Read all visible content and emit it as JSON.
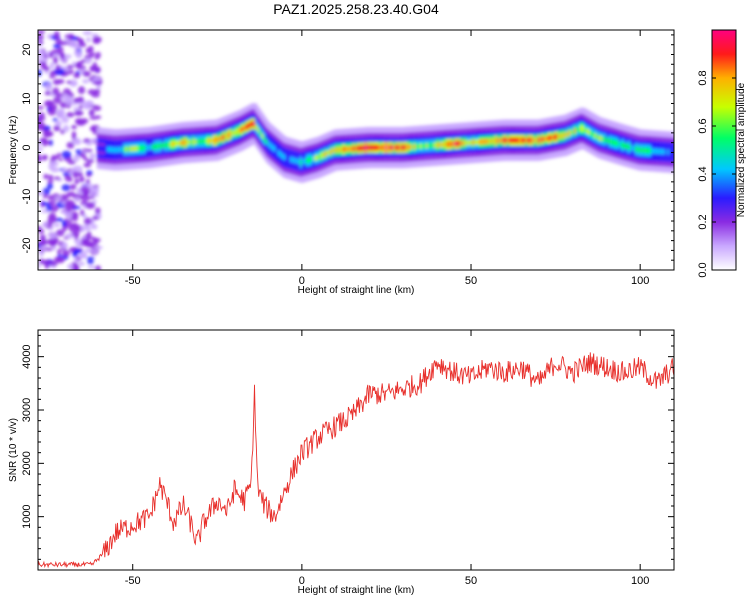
{
  "title": "PAZ1.2025.258.23.40.G04",
  "colors": {
    "snr_line": "#e8302c",
    "colormap": [
      "#ffffff",
      "#c9a8ff",
      "#8a2be2",
      "#2a1cff",
      "#00c8ff",
      "#00ff66",
      "#c8ff00",
      "#ffb000",
      "#ff1a1a",
      "#ff0080"
    ]
  },
  "chart_data": [
    {
      "type": "heatmap",
      "xlabel": "Height of straight line (km)",
      "ylabel": "Frequency (Hz)",
      "xlim": [
        -78,
        110
      ],
      "ylim": [
        -25,
        24
      ],
      "xticks": [
        -50,
        0,
        50,
        100
      ],
      "yticks": [
        20,
        10,
        0,
        -10,
        -20
      ],
      "colorbar": {
        "label": "Normalized spectral amplitude",
        "range": [
          0,
          1
        ],
        "ticks": [
          "0.0",
          "0.2",
          "0.4",
          "0.6",
          "0.8"
        ],
        "tick_values": [
          0,
          0.2,
          0.4,
          0.6,
          0.8
        ]
      },
      "ridge_frequency": {
        "x": [
          -62,
          -55,
          -45,
          -35,
          -25,
          -18,
          -14,
          -10,
          -5,
          0,
          5,
          10,
          20,
          30,
          40,
          50,
          60,
          70,
          78,
          83,
          88,
          95,
          100,
          110
        ],
        "y": [
          0,
          -0.5,
          0,
          1,
          1.5,
          3.5,
          5,
          1,
          -2,
          -3,
          -2,
          -0.5,
          0,
          0,
          0.5,
          1,
          1.5,
          1.5,
          2.5,
          4,
          2,
          0.5,
          -0.5,
          -1
        ]
      },
      "ridge_amplitude": {
        "x": [
          -62,
          -55,
          -50,
          -45,
          -40,
          -35,
          -30,
          -25,
          -20,
          -15,
          -10,
          -5,
          0,
          5,
          10,
          15,
          20,
          25,
          30,
          35,
          40,
          45,
          50,
          55,
          60,
          65,
          70,
          75,
          80,
          85,
          90,
          95,
          100,
          105,
          110
        ],
        "y": [
          0.3,
          0.4,
          0.65,
          0.5,
          0.6,
          0.8,
          0.55,
          0.85,
          0.75,
          0.9,
          0.45,
          0.4,
          0.5,
          0.6,
          0.75,
          0.8,
          0.95,
          0.95,
          0.85,
          0.6,
          0.7,
          0.9,
          0.7,
          0.75,
          0.8,
          0.9,
          0.8,
          0.85,
          0.7,
          0.6,
          0.6,
          0.5,
          0.6,
          0.45,
          0.4
        ]
      },
      "noise_region": {
        "x_range": [
          -78,
          -60
        ]
      }
    },
    {
      "type": "line",
      "xlabel": "Height of straight line (km)",
      "ylabel": "SNR (10 * v/v)",
      "xlim": [
        -78,
        110
      ],
      "ylim": [
        0,
        4500
      ],
      "xticks": [
        -50,
        0,
        50,
        100
      ],
      "yticks": [
        1000,
        2000,
        3000,
        4000
      ],
      "series": [
        {
          "x": [
            -78,
            -70,
            -62,
            -58,
            -55,
            -50,
            -45,
            -42,
            -40,
            -38,
            -35,
            -33,
            -31,
            -29,
            -25,
            -22,
            -20,
            -17,
            -15,
            -14,
            -13,
            -11,
            -8,
            -5,
            -3,
            0,
            5,
            10,
            15,
            20,
            25,
            30,
            35,
            40,
            45,
            50,
            55,
            60,
            65,
            70,
            75,
            80,
            85,
            90,
            95,
            100,
            105,
            110
          ],
          "y": [
            100,
            100,
            100,
            350,
            700,
            850,
            1000,
            1600,
            1300,
            900,
            1200,
            900,
            500,
            900,
            1300,
            1100,
            1500,
            1300,
            1600,
            3300,
            1500,
            1200,
            1000,
            1500,
            1800,
            2200,
            2500,
            2700,
            2900,
            3300,
            3300,
            3400,
            3500,
            3900,
            3700,
            3600,
            3800,
            3700,
            3800,
            3500,
            3900,
            3700,
            3900,
            3800,
            3700,
            3800,
            3500,
            3800
          ]
        }
      ]
    }
  ]
}
